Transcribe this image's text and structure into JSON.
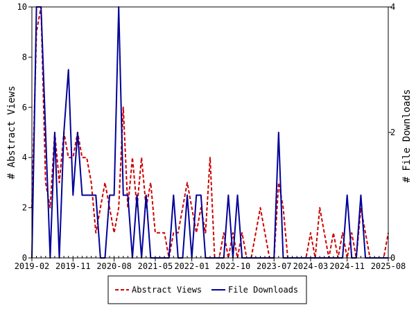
{
  "chart_data": {
    "type": "line",
    "left_axis": {
      "label": "# Abstract Views",
      "ylim": [
        0,
        10
      ],
      "ticks": [
        0,
        2,
        4,
        6,
        8,
        10
      ]
    },
    "right_axis": {
      "label": "# File Downloads",
      "ylim": [
        0,
        4
      ],
      "ticks": [
        0,
        2,
        4
      ]
    },
    "x_ticks": [
      "2019-02",
      "2019-11",
      "2020-08",
      "2021-05",
      "2022-01",
      "2022-10",
      "2023-07",
      "2024-03",
      "2024-11",
      "2025-08"
    ],
    "x_tick_index": [
      0,
      9,
      18,
      27,
      35,
      44,
      53,
      61,
      69,
      78
    ],
    "months_count": 79,
    "legend_position": "bottom",
    "series": [
      {
        "name": "Abstract Views",
        "axis": "left",
        "color": "#cc0000",
        "dash": true,
        "values": [
          2,
          9,
          10,
          3,
          2,
          5,
          3,
          5,
          4,
          4,
          5,
          4,
          4,
          3,
          1,
          2,
          3,
          2,
          1,
          2,
          6,
          2,
          4,
          2,
          4,
          2,
          3,
          1,
          1,
          1,
          0,
          1,
          1,
          2,
          3,
          2,
          1,
          2,
          1,
          4,
          0,
          0,
          1,
          0,
          1,
          0,
          1,
          0,
          0,
          1,
          2,
          1,
          0,
          0,
          3,
          2,
          0,
          0,
          0,
          0,
          0,
          1,
          0,
          2,
          1,
          0,
          1,
          0,
          1,
          0,
          1,
          0,
          2,
          1,
          0,
          0,
          0,
          0,
          1
        ]
      },
      {
        "name": "File Downloads",
        "axis": "right",
        "color": "#000099",
        "dash": false,
        "values": [
          0,
          4,
          4,
          2,
          0,
          2,
          0,
          2,
          3,
          1,
          2,
          1,
          1,
          1,
          1,
          0,
          0,
          1,
          1,
          4,
          1,
          1,
          0,
          1,
          0,
          1,
          0,
          0,
          0,
          0,
          0,
          1,
          0,
          0,
          1,
          0,
          1,
          1,
          0,
          0,
          0,
          0,
          0,
          1,
          0,
          1,
          0,
          0,
          0,
          0,
          0,
          0,
          0,
          0,
          2,
          0,
          0,
          0,
          0,
          0,
          0,
          0,
          0,
          0,
          0,
          0,
          0,
          0,
          0,
          1,
          0,
          0,
          1,
          0,
          0,
          0,
          0,
          0,
          0
        ]
      }
    ]
  }
}
